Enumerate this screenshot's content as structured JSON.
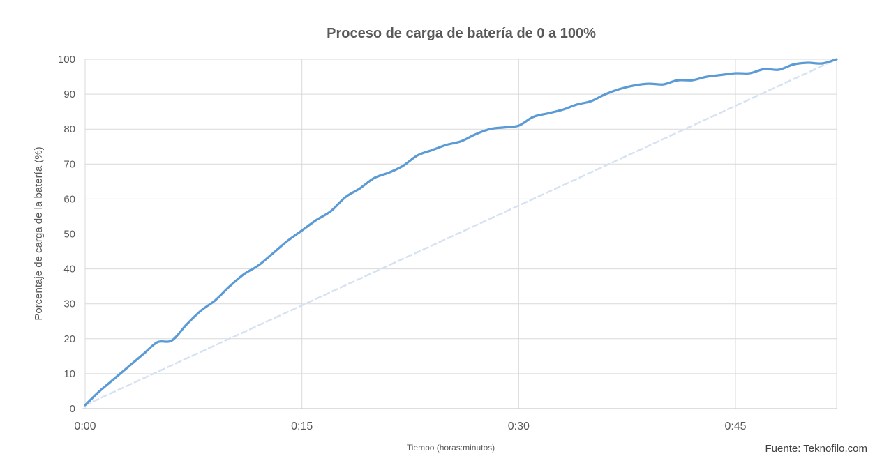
{
  "chart_data": {
    "type": "line",
    "title": "Proceso de carga de batería de 0 a 100%",
    "xlabel": "Tiempo (horas:minutos)",
    "ylabel": "Porcentaje de carga de la batería (%)",
    "source": "Fuente: Teknofilo.com",
    "xlim_minutes": [
      0,
      52
    ],
    "ylim": [
      0,
      100
    ],
    "grid": true,
    "legend": false,
    "x_ticks": [
      {
        "minute": 0,
        "label": "0:00"
      },
      {
        "minute": 15,
        "label": "0:15"
      },
      {
        "minute": 30,
        "label": "0:30"
      },
      {
        "minute": 45,
        "label": "0:45"
      }
    ],
    "y_ticks": [
      0,
      10,
      20,
      30,
      40,
      50,
      60,
      70,
      80,
      90,
      100
    ],
    "series": [
      {
        "name": "carga-bateria",
        "style": "solid",
        "color": "#5B9BD5",
        "width": 3.25,
        "smooth": true,
        "x_minutes": [
          0,
          1,
          2,
          3,
          4,
          5,
          6,
          7,
          8,
          9,
          10,
          11,
          12,
          13,
          14,
          15,
          16,
          17,
          18,
          19,
          20,
          21,
          22,
          23,
          24,
          25,
          26,
          27,
          28,
          29,
          30,
          31,
          32,
          33,
          34,
          35,
          36,
          37,
          38,
          39,
          40,
          41,
          42,
          43,
          44,
          45,
          46,
          47,
          48,
          49,
          50,
          51,
          52
        ],
        "y_percent": [
          1,
          5,
          8.5,
          12,
          15.5,
          19,
          19.5,
          24,
          28,
          31,
          35,
          38.5,
          41,
          44.5,
          48,
          51,
          54,
          56.5,
          60.5,
          63,
          66,
          67.5,
          69.5,
          72.5,
          74,
          75.5,
          76.5,
          78.5,
          80,
          80.5,
          81,
          83.5,
          84.5,
          85.5,
          87,
          88,
          90,
          91.5,
          92.5,
          93,
          92.8,
          94,
          94,
          95,
          95.5,
          96,
          96,
          97.2,
          97,
          98.5,
          99,
          98.8,
          100
        ]
      },
      {
        "name": "referencia-lineal",
        "style": "dashed",
        "color": "#D6E2F2",
        "width": 2.5,
        "smooth": false,
        "x_minutes": [
          0,
          52
        ],
        "y_percent": [
          1,
          100
        ]
      }
    ],
    "colors": {
      "grid": "#D9D9D9",
      "axis": "#BFBFBF",
      "tick_text": "#595959",
      "title_text": "#595959",
      "source_text": "#3F3F3F"
    }
  }
}
